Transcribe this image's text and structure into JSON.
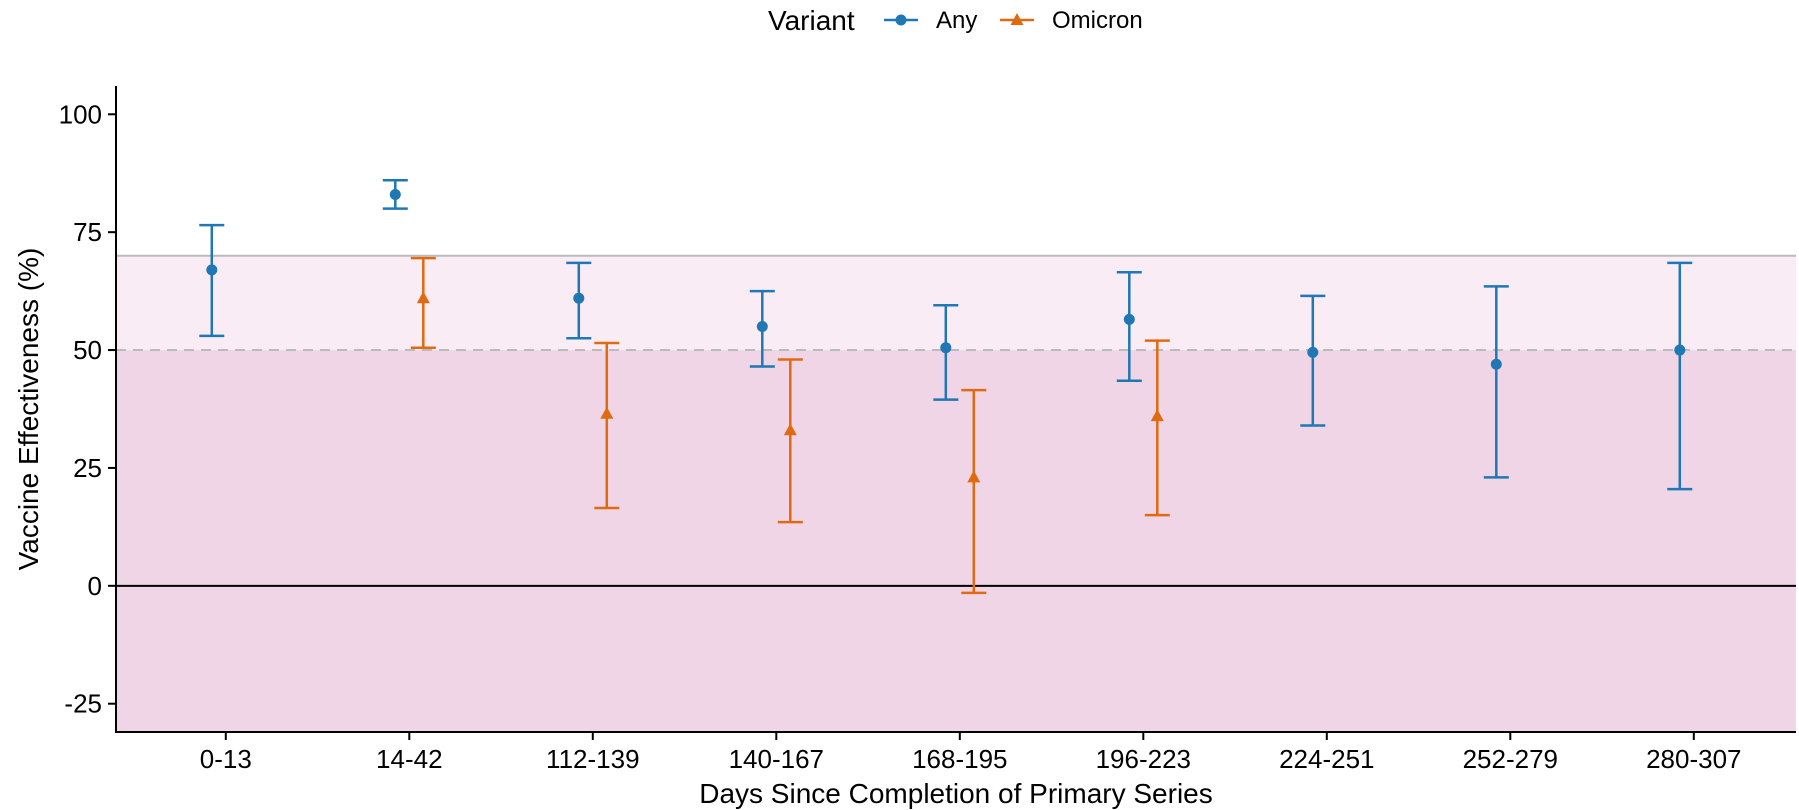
{
  "chart_data": {
    "type": "errorbar",
    "xlabel": "Days Since Completion of Primary Series",
    "ylabel": "Vaccine Effectiveness (%)",
    "categories": [
      "0-13",
      "14-42",
      "112-139",
      "140-167",
      "168-195",
      "196-223",
      "224-251",
      "252-279",
      "280-307"
    ],
    "ylim": [
      -31,
      106
    ],
    "yticks": [
      -25,
      0,
      25,
      50,
      75,
      100
    ],
    "yticks_labels": [
      "-25",
      "0",
      "25",
      "50",
      "75",
      "100"
    ],
    "reference_lines": [
      {
        "y": 0,
        "style": "solid",
        "color": "#000000"
      },
      {
        "y": 50,
        "style": "dashed",
        "color": "#bbbbbb"
      },
      {
        "y": 70,
        "style": "solid",
        "color": "#bbbbbb"
      }
    ],
    "shaded_regions": [
      {
        "from": -31,
        "to": 50,
        "color": "#efd5e5"
      },
      {
        "from": 50,
        "to": 70,
        "color": "#f9ecf4"
      }
    ],
    "legend": {
      "title": "Variant",
      "position": "top"
    },
    "series": [
      {
        "name": "Any",
        "color": "#1f77b4",
        "marker": "circle",
        "points": [
          {
            "category": "0-13",
            "value": 67,
            "lower": 53,
            "upper": 76.5
          },
          {
            "category": "14-42",
            "value": 83,
            "lower": 80,
            "upper": 86
          },
          {
            "category": "112-139",
            "value": 61,
            "lower": 52.5,
            "upper": 68.5
          },
          {
            "category": "140-167",
            "value": 55,
            "lower": 46.5,
            "upper": 62.5
          },
          {
            "category": "168-195",
            "value": 50.5,
            "lower": 39.5,
            "upper": 59.5
          },
          {
            "category": "196-223",
            "value": 56.5,
            "lower": 43.5,
            "upper": 66.5
          },
          {
            "category": "224-251",
            "value": 49.5,
            "lower": 34,
            "upper": 61.5
          },
          {
            "category": "252-279",
            "value": 47,
            "lower": 23,
            "upper": 63.5
          },
          {
            "category": "280-307",
            "value": 50,
            "lower": 20.5,
            "upper": 68.5
          }
        ]
      },
      {
        "name": "Omicron",
        "color": "#e06a10",
        "marker": "triangle",
        "points": [
          {
            "category": "14-42",
            "value": 61,
            "lower": 50.5,
            "upper": 69.5
          },
          {
            "category": "112-139",
            "value": 36.5,
            "lower": 16.5,
            "upper": 51.5
          },
          {
            "category": "140-167",
            "value": 33,
            "lower": 13.5,
            "upper": 48
          },
          {
            "category": "168-195",
            "value": 23,
            "lower": -1.5,
            "upper": 41.5
          },
          {
            "category": "196-223",
            "value": 36,
            "lower": 15,
            "upper": 52
          }
        ]
      }
    ]
  }
}
